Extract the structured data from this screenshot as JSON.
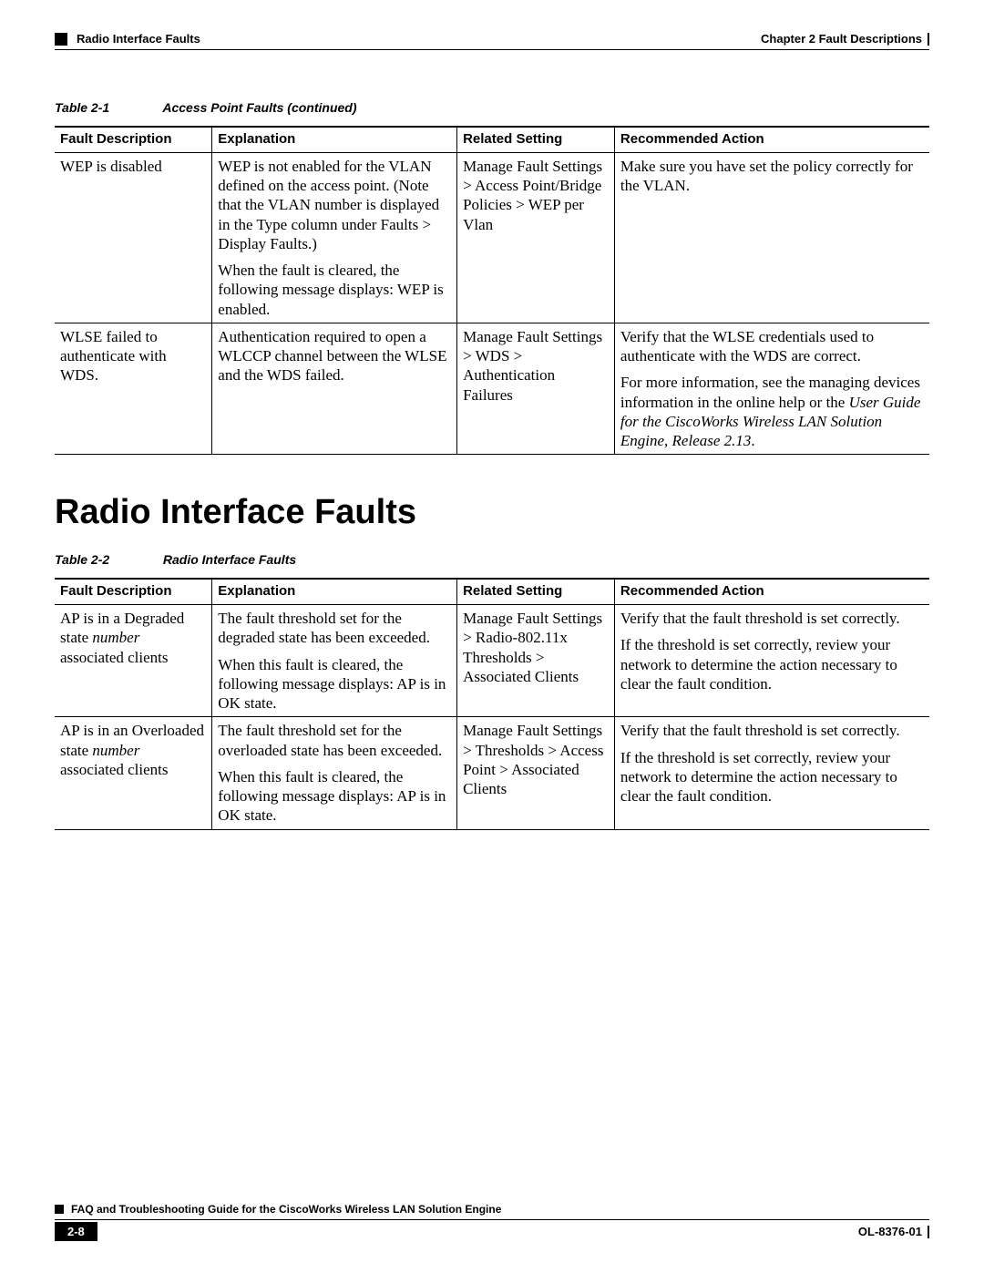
{
  "header": {
    "section": "Radio Interface Faults",
    "chapter": "Chapter 2      Fault Descriptions"
  },
  "table1": {
    "caption_num": "Table 2-1",
    "caption_text": "Access Point Faults (continued)",
    "columns": [
      "Fault Description",
      "Explanation",
      "Related Setting",
      "Recommended Action"
    ],
    "rows": [
      {
        "fault": "WEP is disabled",
        "explanation_p1": "WEP is not enabled for the VLAN defined on the access point. (Note that the VLAN number is displayed in the Type column under Faults > Display Faults.)",
        "explanation_p2": "When the fault is cleared, the following message displays: WEP is enabled.",
        "setting": "Manage Fault Settings > Access Point/Bridge Policies > WEP per Vlan",
        "action_p1": "Make sure you have set the policy correctly for the VLAN."
      },
      {
        "fault": "WLSE failed to authenticate with WDS.",
        "explanation_p1": "Authentication required to open a WLCCP channel between the WLSE and the WDS failed.",
        "setting": "Manage Fault Settings > WDS > Authentication Failures",
        "action_p1": "Verify that the WLSE credentials used to authenticate with the WDS are correct.",
        "action_p2_pre": "For more information, see the managing devices information in the online help or the ",
        "action_p2_em": "User Guide for the CiscoWorks Wireless LAN Solution Engine, Release 2.13",
        "action_p2_post": "."
      }
    ]
  },
  "section_title": "Radio Interface Faults",
  "table2": {
    "caption_num": "Table 2-2",
    "caption_text": "Radio Interface Faults",
    "columns": [
      "Fault Description",
      "Explanation",
      "Related Setting",
      "Recommended Action"
    ],
    "rows": [
      {
        "fault_pre": "AP is in a Degraded state ",
        "fault_em": "number",
        "fault_post": " associated clients",
        "explanation_p1": "The fault threshold set for the degraded state has been exceeded.",
        "explanation_p2": "When this fault is cleared, the following message displays: AP is in OK state.",
        "setting": "Manage Fault Settings > Radio-802.11x Thresholds > Associated Clients",
        "action_p1": "Verify that the fault threshold is set correctly.",
        "action_p2": "If the threshold is set correctly, review your network to determine the action necessary to clear the fault condition."
      },
      {
        "fault_pre": "AP is in an Overloaded state ",
        "fault_em": "number",
        "fault_post": " associated clients",
        "explanation_p1": "The fault threshold set for the overloaded state has been exceeded.",
        "explanation_p2": "When this fault is cleared, the following message displays: AP is in OK state.",
        "setting": "Manage Fault Settings > Thresholds > Access Point > Associated Clients",
        "action_p1": "Verify that the fault threshold is set correctly.",
        "action_p2": "If the threshold is set correctly, review your network to determine the action necessary to clear the fault condition."
      }
    ]
  },
  "footer": {
    "guide_title": "FAQ and Troubleshooting Guide for the CiscoWorks Wireless LAN Solution Engine",
    "page_number": "2-8",
    "doc_id": "OL-8376-01"
  }
}
